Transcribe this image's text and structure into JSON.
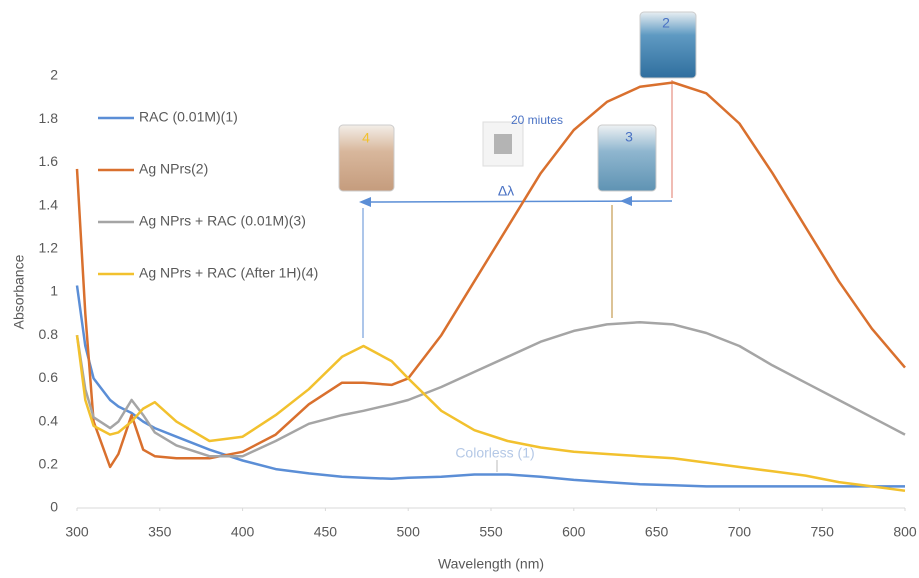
{
  "chart_data": {
    "type": "line",
    "xlabel": "Wavelength (nm)",
    "ylabel": "Absorbance",
    "x": [
      300,
      305,
      310,
      320,
      325,
      333,
      340,
      347,
      360,
      380,
      400,
      420,
      440,
      460,
      473,
      490,
      500,
      520,
      540,
      560,
      580,
      600,
      620,
      640,
      660,
      680,
      700,
      720,
      740,
      760,
      780,
      800
    ],
    "series": [
      {
        "name": "RAC (0.01M)(1)",
        "color": "#5b8ed6",
        "values": [
          1.03,
          0.75,
          0.6,
          0.5,
          0.47,
          0.44,
          0.4,
          0.37,
          0.33,
          0.27,
          0.22,
          0.18,
          0.16,
          0.145,
          0.14,
          0.135,
          0.14,
          0.145,
          0.155,
          0.155,
          0.145,
          0.13,
          0.12,
          0.11,
          0.105,
          0.1,
          0.1,
          0.1,
          0.1,
          0.1,
          0.1,
          0.1
        ]
      },
      {
        "name": "Ag NPrs(2)",
        "color": "#d9702e",
        "values": [
          1.57,
          0.9,
          0.4,
          0.19,
          0.25,
          0.43,
          0.27,
          0.24,
          0.23,
          0.23,
          0.26,
          0.34,
          0.48,
          0.58,
          0.58,
          0.57,
          0.6,
          0.8,
          1.05,
          1.3,
          1.55,
          1.75,
          1.88,
          1.95,
          1.97,
          1.92,
          1.78,
          1.55,
          1.3,
          1.05,
          0.83,
          0.65
        ]
      },
      {
        "name": "Ag NPrs + RAC (0.01M)(3)",
        "color": "#a5a5a5",
        "values": [
          0.8,
          0.55,
          0.42,
          0.37,
          0.4,
          0.5,
          0.43,
          0.35,
          0.29,
          0.24,
          0.24,
          0.31,
          0.39,
          0.43,
          0.45,
          0.48,
          0.5,
          0.56,
          0.63,
          0.7,
          0.77,
          0.82,
          0.85,
          0.86,
          0.85,
          0.81,
          0.75,
          0.66,
          0.58,
          0.5,
          0.42,
          0.34
        ]
      },
      {
        "name": "Ag NPrs + RAC (After 1H)(4)",
        "color": "#f2c12e",
        "values": [
          0.8,
          0.5,
          0.38,
          0.34,
          0.35,
          0.4,
          0.46,
          0.49,
          0.4,
          0.31,
          0.33,
          0.43,
          0.55,
          0.7,
          0.75,
          0.68,
          0.6,
          0.45,
          0.36,
          0.31,
          0.28,
          0.26,
          0.25,
          0.24,
          0.23,
          0.21,
          0.19,
          0.17,
          0.15,
          0.12,
          0.1,
          0.08
        ]
      }
    ],
    "xlim": [
      300,
      800
    ],
    "xticks": [
      300,
      350,
      400,
      450,
      500,
      550,
      600,
      650,
      700,
      750,
      800
    ],
    "ylim": [
      0,
      2
    ],
    "yticks": [
      0,
      0.2,
      0.4,
      0.6,
      0.8,
      1,
      1.2,
      1.4,
      1.6,
      1.8,
      2
    ],
    "annotations": [
      "2",
      "3",
      "4",
      "20 miutes",
      "Δλ",
      "Colorless (1)"
    ]
  }
}
